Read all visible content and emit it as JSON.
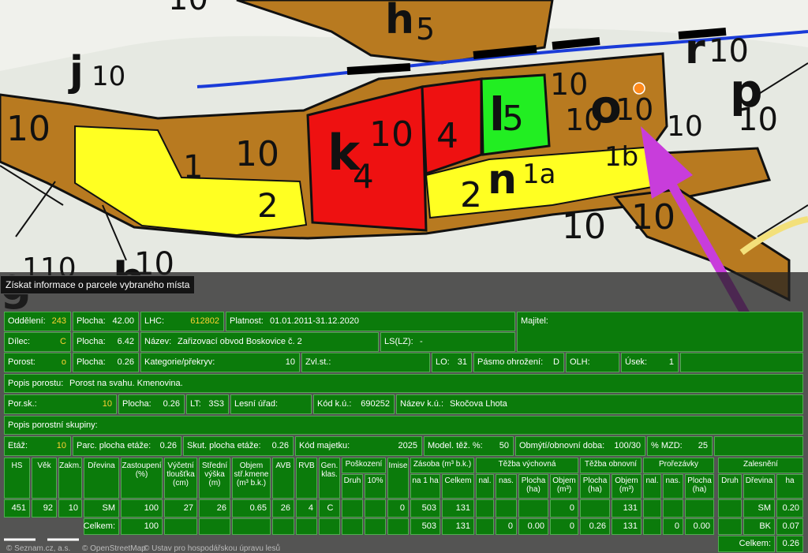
{
  "map": {
    "labels": [
      "h",
      "5",
      "r",
      "10",
      "p",
      "10",
      "j",
      "10",
      "10",
      "10",
      "1",
      "2",
      "k",
      "4",
      "10",
      "4",
      "l",
      "5",
      "10",
      "o",
      "10",
      "10",
      "n",
      "1a",
      "1b",
      "2",
      "10",
      "10",
      "10",
      "h",
      "10",
      "10",
      "g",
      "110"
    ],
    "attribution": [
      "© Seznam.cz, a.s.",
      "© OpenStreetMap",
      "© Ustav pro hospodářskou úpravu lesů"
    ]
  },
  "tooltip": "Získat informace o parcele vybraného místa",
  "info": {
    "rows": [
      [
        {
          "label": "Oddělení:",
          "value": "243"
        },
        {
          "label": "Plocha:",
          "value": "42.00"
        },
        {
          "label": "LHC:",
          "value": "612802"
        },
        {
          "label": "Platnost:",
          "value": "01.01.2011-31.12.2020"
        },
        {
          "label": "Majitel:"
        }
      ],
      [
        {
          "label": "Dílec:",
          "value": "C"
        },
        {
          "label": "Plocha:",
          "value": "6.42"
        },
        {
          "label": "Název:",
          "value": "Zařizovací obvod Boskovice č. 2"
        },
        {
          "label": "LS(LZ):",
          "value": "-"
        }
      ],
      [
        {
          "label": "Porost:",
          "value": "o"
        },
        {
          "label": "Plocha:",
          "value": "0.26"
        },
        {
          "label": "Kategorie/překryv:",
          "value": "10"
        },
        {
          "label": "Zvl.st.:"
        },
        {
          "label": "LO:",
          "value": "31"
        },
        {
          "label": "Pásmo ohrožení:",
          "value": "D"
        },
        {
          "label": "OLH:"
        },
        {
          "label": "Úsek:",
          "value": "1"
        }
      ],
      [
        {
          "label": "Popis porostu:",
          "value": "Porost na svahu. Kmenovina."
        }
      ],
      [
        {
          "label": "Por.sk.:",
          "value": "10"
        },
        {
          "label": "Plocha:",
          "value": "0.26"
        },
        {
          "label": "LT:",
          "value": "3S3"
        },
        {
          "label": "Lesní úřad:"
        },
        {
          "label": "Kód k.ú.:",
          "value": "690252"
        },
        {
          "label": "Název k.ú.:",
          "value": "Skočova Lhota"
        }
      ],
      [
        {
          "label": "Popis porostní skupiny:"
        }
      ],
      [
        {
          "label": "Etáž:",
          "value": "10"
        },
        {
          "label": "Parc. plocha etáže:",
          "value": "0.26"
        },
        {
          "label": "Skut. plocha etáže:",
          "value": "0.26"
        },
        {
          "label": "Kód majetku:",
          "value": "2025"
        },
        {
          "label": "Model. těž. %:",
          "value": "50"
        },
        {
          "label": "Obmýtí/obnovní doba:",
          "value": "100/30"
        },
        {
          "label": "% MZD:",
          "value": "25"
        }
      ]
    ]
  },
  "table": {
    "columns": [
      {
        "label": "HS"
      },
      {
        "label": "Věk"
      },
      {
        "label": "Zakm."
      },
      {
        "label": "Dřevina"
      },
      {
        "label": "Zastoupení\n(%)"
      },
      {
        "label": "Výčetní\ntloušťka\n(cm)"
      },
      {
        "label": "Střední\nvýška\n(m)"
      },
      {
        "label": "Objem\nstř.kmene\n(m³ b.k.)"
      },
      {
        "label": "AVB"
      },
      {
        "label": "RVB"
      },
      {
        "label": "Gen.\nklas."
      },
      {
        "label": "Poškození",
        "sub": [
          "Druh",
          "10%"
        ]
      },
      {
        "label": "Imise"
      },
      {
        "label": "Zásoba (m³ b.k.)",
        "sub": [
          "na 1 ha",
          "Celkem"
        ]
      },
      {
        "label": "Těžba výchovná",
        "sub": [
          "nal.",
          "nas.",
          "Plocha\n(ha)",
          "Objem\n(m³)"
        ]
      },
      {
        "label": "Těžba obnovní",
        "sub": [
          "Plocha\n(ha)",
          "Objem\n(m³)"
        ]
      },
      {
        "label": "Prořezávky",
        "sub": [
          "nal.",
          "nas.",
          "Plocha\n(ha)"
        ]
      }
    ],
    "rows": [
      [
        "451",
        "92",
        "10",
        "SM",
        "100",
        "27",
        "26",
        "0.65",
        "26",
        "4",
        "C",
        null,
        null,
        "0",
        "503",
        "131",
        null,
        null,
        null,
        "0",
        null,
        "131",
        null,
        null,
        null
      ],
      [
        null,
        null,
        null,
        "Celkem:",
        "100",
        null,
        null,
        null,
        null,
        null,
        null,
        null,
        null,
        null,
        "503",
        "131",
        null,
        "0",
        "0.00",
        "0",
        "0.26",
        "131",
        null,
        "0",
        "0.00"
      ]
    ]
  },
  "reforestation": {
    "title": "Zalesnění",
    "columns": [
      "Druh",
      "Dřevina",
      "ha"
    ],
    "rows": [
      [
        null,
        "SM",
        "0.20"
      ],
      [
        null,
        "BK",
        "0.07"
      ]
    ],
    "total_label": "Celkem:",
    "total": "0.26"
  }
}
